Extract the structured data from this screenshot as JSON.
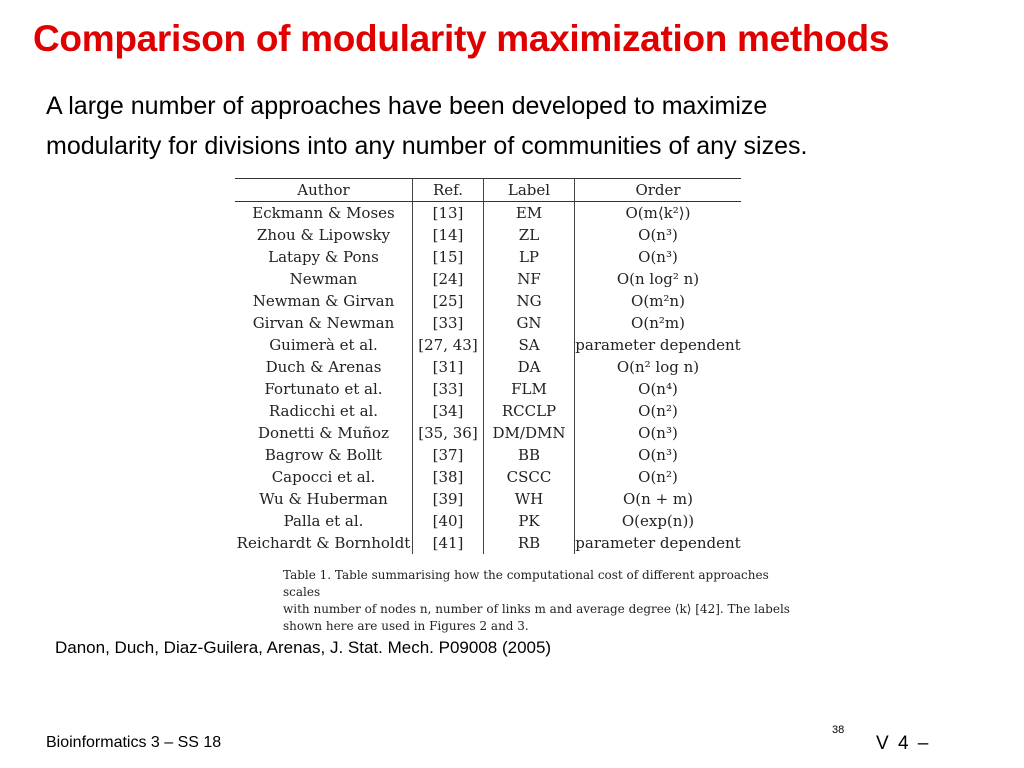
{
  "title": "Comparison of modularity maximization methods",
  "intro": {
    "line1": "A large number of approaches have been developed to maximize",
    "line2": "modularity for divisions into any number of communities of any sizes."
  },
  "table": {
    "headers": [
      "Author",
      "Ref.",
      "Label",
      "Order"
    ],
    "rows": [
      [
        "Eckmann & Moses",
        "[13]",
        "EM",
        "O(m⟨k²⟩)"
      ],
      [
        "Zhou & Lipowsky",
        "[14]",
        "ZL",
        "O(n³)"
      ],
      [
        "Latapy & Pons",
        "[15]",
        "LP",
        "O(n³)"
      ],
      [
        "Newman",
        "[24]",
        "NF",
        "O(n log² n)"
      ],
      [
        "Newman & Girvan",
        "[25]",
        "NG",
        "O(m²n)"
      ],
      [
        "Girvan & Newman",
        "[33]",
        "GN",
        "O(n²m)"
      ],
      [
        "Guimerà et al.",
        "[27, 43]",
        "SA",
        "parameter dependent"
      ],
      [
        "Duch & Arenas",
        "[31]",
        "DA",
        "O(n² log n)"
      ],
      [
        "Fortunato et al.",
        "[33]",
        "FLM",
        "O(n⁴)"
      ],
      [
        "Radicchi et al.",
        "[34]",
        "RCCLP",
        "O(n²)"
      ],
      [
        "Donetti & Muñoz",
        "[35, 36]",
        "DM/DMN",
        "O(n³)"
      ],
      [
        "Bagrow & Bollt",
        "[37]",
        "BB",
        "O(n³)"
      ],
      [
        "Capocci et al.",
        "[38]",
        "CSCC",
        "O(n²)"
      ],
      [
        "Wu & Huberman",
        "[39]",
        "WH",
        "O(n + m)"
      ],
      [
        "Palla et al.",
        "[40]",
        "PK",
        "O(exp(n))"
      ],
      [
        "Reichardt & Bornholdt",
        "[41]",
        "RB",
        "parameter dependent"
      ]
    ],
    "caption": {
      "line1": "Table 1. Table summarising how the computational cost of different approaches scales",
      "line2": "with number of nodes n, number of links m and average degree ⟨k⟩ [42]. The labels",
      "line3": "shown here are used in Figures 2 and 3."
    }
  },
  "citation": "Danon, Duch, Diaz-Guilera, Arenas, J. Stat. Mech. P09008 (2005)",
  "footer": {
    "course": "Bioinformatics 3 – SS 18",
    "page": "38",
    "version": "V 4 –"
  }
}
